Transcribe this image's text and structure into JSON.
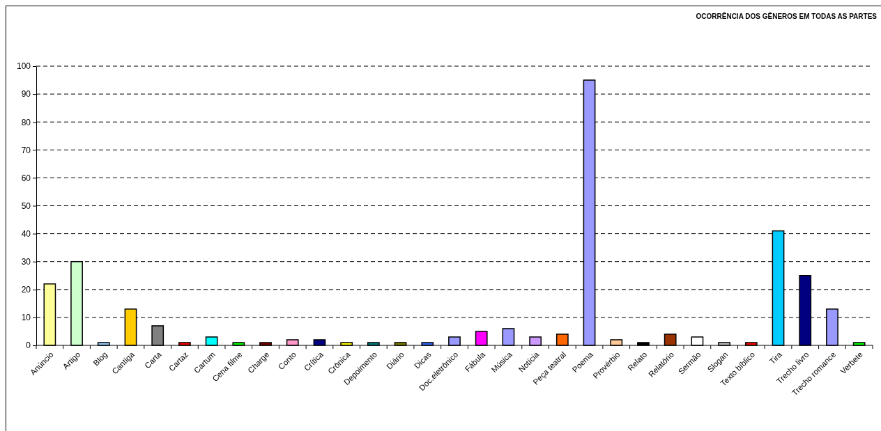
{
  "chart_data": {
    "type": "bar",
    "title": "OCORRÊNCIA DOS GÊNEROS EM TODAS AS PARTES",
    "categories": [
      "Anúncio",
      "Artigo",
      "Blog",
      "Cantiga",
      "Carta",
      "Cartaz",
      "Cartum",
      "Cena filme",
      "Charge",
      "Conto",
      "Crítica",
      "Crônica",
      "Depoimento",
      "Diário",
      "Dicas",
      "Doc.eletrônico",
      "Fábula",
      "Música",
      "Notícia",
      "Peça teatral",
      "Poema",
      "Provérbio",
      "Relato",
      "Relatório",
      "Sermão",
      "Slogan",
      "Texto bíblico",
      "Tira",
      "Trecho livro",
      "Trecho romance",
      "Verbete"
    ],
    "values": [
      22,
      30,
      1,
      13,
      7,
      1,
      3,
      1,
      1,
      2,
      2,
      1,
      1,
      1,
      1,
      3,
      5,
      6,
      3,
      4,
      95,
      2,
      1,
      4,
      3,
      1,
      1,
      41,
      25,
      13,
      1
    ],
    "colors": [
      "#ffff99",
      "#ccffcc",
      "#99ccff",
      "#ffcc00",
      "#808080",
      "#ff0000",
      "#00ffff",
      "#00ff00",
      "#800000",
      "#ff99cc",
      "#000080",
      "#ffff00",
      "#008080",
      "#808000",
      "#3366ff",
      "#9999ff",
      "#ff00ff",
      "#9999ff",
      "#cc99ff",
      "#ff6600",
      "#9999ff",
      "#ffcc99",
      "#000000",
      "#993300",
      "#ffffff",
      "#c0c0c0",
      "#ff0000",
      "#00ccff",
      "#000080",
      "#9999ff",
      "#00ff00"
    ],
    "ylim": [
      0,
      100
    ],
    "yticks": [
      0,
      10,
      20,
      30,
      40,
      50,
      60,
      70,
      80,
      90,
      100
    ],
    "grid": "y",
    "line_style": "dashed"
  }
}
